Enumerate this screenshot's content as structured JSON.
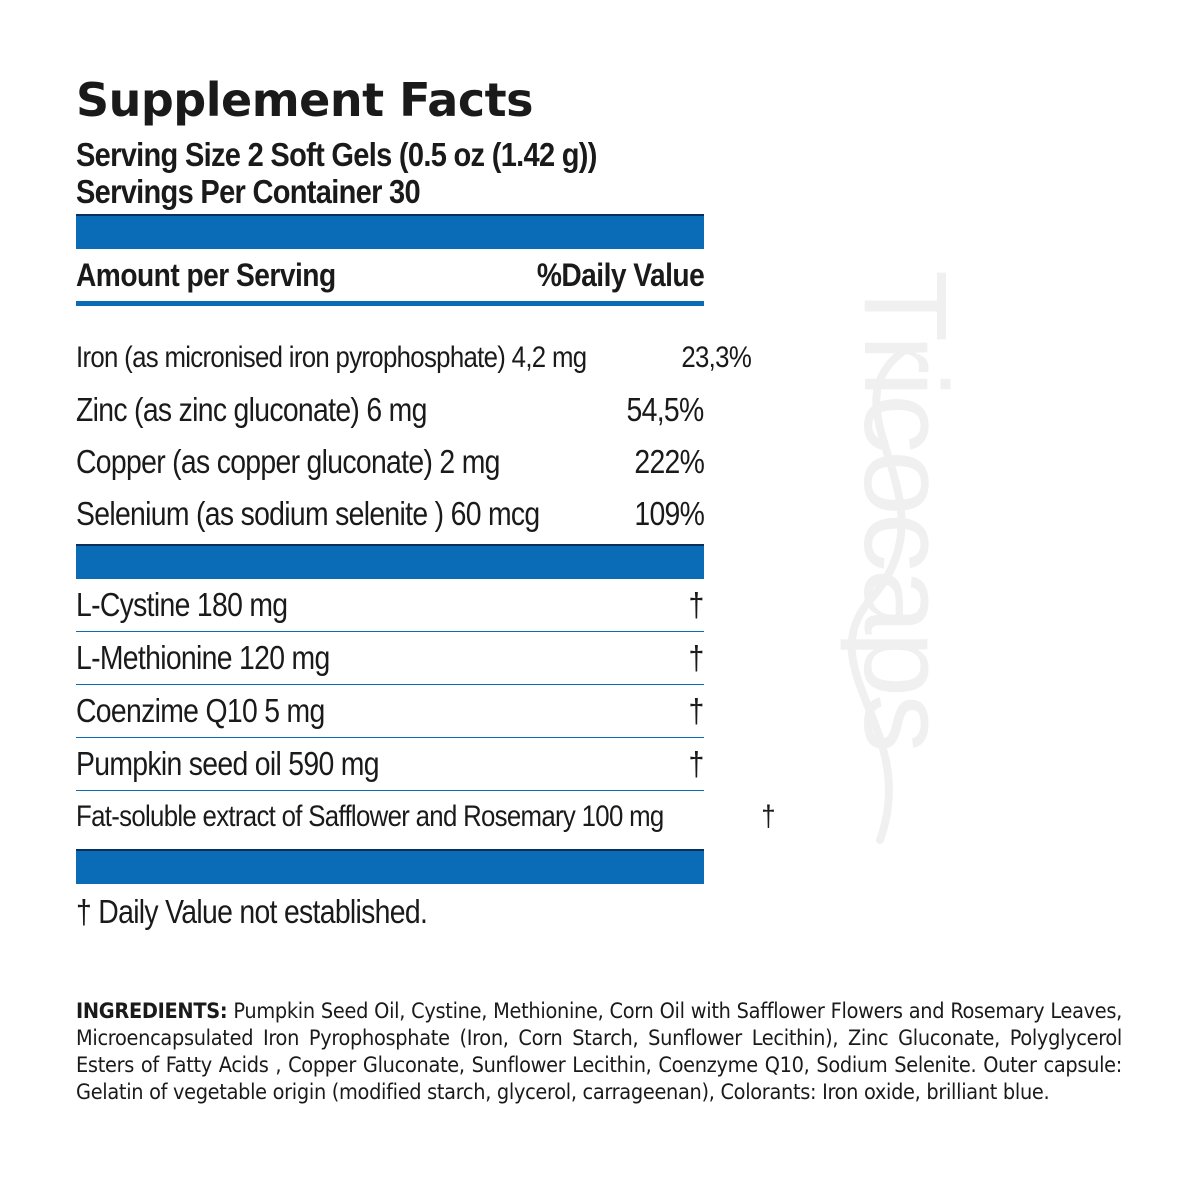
{
  "title": "Supplement Facts",
  "serving_size": "Serving Size 2 Soft Gels (0.5 oz (1.42 g))",
  "servings_per_container": "Servings Per Container 30",
  "header": {
    "amount_label": "Amount per Serving",
    "dv_label": "%Daily Value"
  },
  "nutrients": [
    {
      "name": "Iron (as micronised iron pyrophosphate) 4,2 mg",
      "dv": "23,3%"
    },
    {
      "name": "Zinc (as zinc gluconate) 6 mg",
      "dv": "54,5%"
    },
    {
      "name": "Copper (as copper gluconate) 2 mg",
      "dv": "222%"
    },
    {
      "name": "Selenium (as sodium selenite ) 60 mcg",
      "dv": "109%"
    }
  ],
  "others": [
    {
      "name": "L-Cystine 180 mg",
      "dv": "†"
    },
    {
      "name": "L-Methionine 120 mg",
      "dv": "†"
    },
    {
      "name": "Coenzime Q10 5 mg",
      "dv": "†"
    },
    {
      "name": "Pumpkin seed oil 590 mg",
      "dv": "†"
    },
    {
      "name": "Fat-soluble extract of Safflower and Rosemary 100 mg",
      "dv": "†"
    }
  ],
  "footnote": "† Daily Value not established.",
  "watermark": "Tricocaps",
  "ingredients": {
    "label": "INGREDIENTS:",
    "text": "Pumpkin Seed Oil, Cystine, Methionine, Corn Oil with Safflower Flowers and Rosemary Leaves, Microencapsulated Iron Pyrophosphate (Iron, Corn Starch, Sunflower Lecithin), Zinc Gluconate, Polyglycerol Esters of Fatty Acids , Copper Gluconate, Sunflower Lecithin, Coenzyme Q10, Sodium Selenite. Outer capsule: Gelatin of vegetable origin (modified starch, glycerol, carrageenan), Colorants: Iron oxide, brilliant blue."
  },
  "colors": {
    "bar": "#0a6bb7",
    "bar_border": "#0a2f5c",
    "text": "#1a1a1a",
    "watermark": "#f0f0f0"
  }
}
